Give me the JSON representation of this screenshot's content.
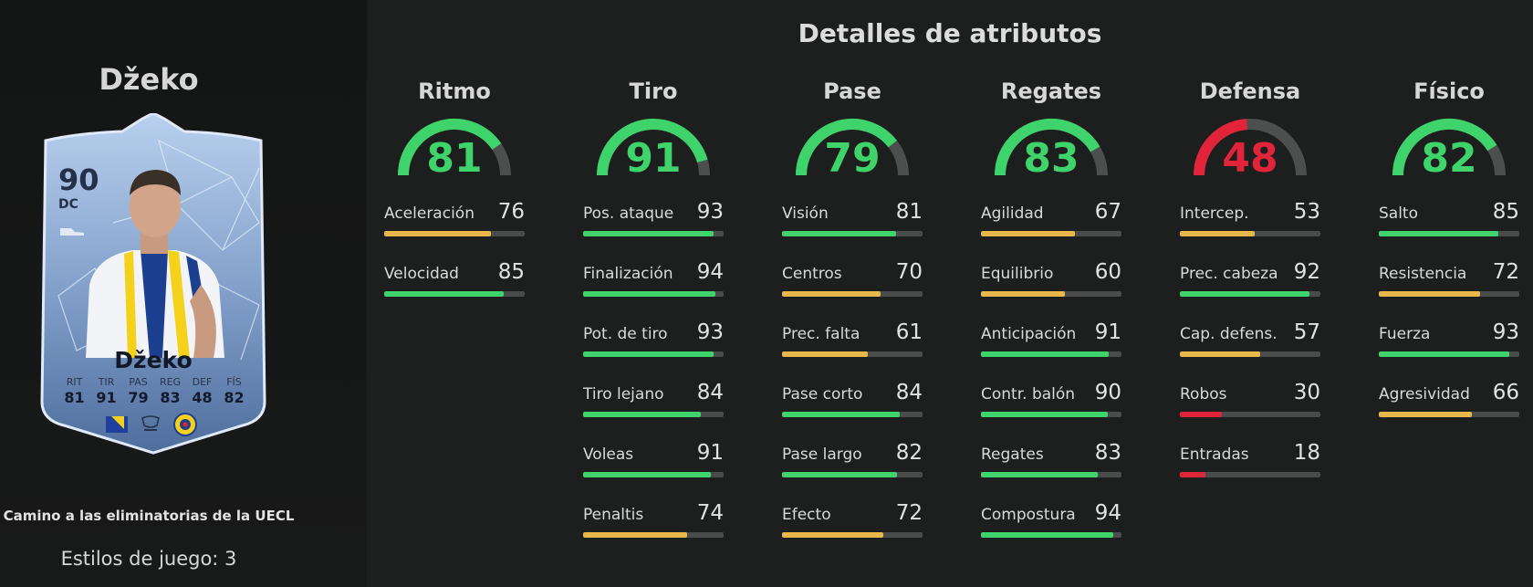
{
  "player": {
    "name": "Džeko",
    "rating": "90",
    "position": "DC",
    "promo": "Camino a las eliminatorias de la UECL",
    "playstyles_label": "Estilos de juego: 3",
    "card_stats": [
      {
        "label": "RIT",
        "value": "81"
      },
      {
        "label": "TIR",
        "value": "91"
      },
      {
        "label": "PAS",
        "value": "79"
      },
      {
        "label": "REG",
        "value": "83"
      },
      {
        "label": "DEF",
        "value": "48"
      },
      {
        "label": "FÍS",
        "value": "82"
      }
    ]
  },
  "page_title": "Detalles de atributos",
  "colors": {
    "high": "#3fd36b",
    "medium": "#e8b94a",
    "low": "#e2243a",
    "track": "#4a4c4c",
    "card": "#a9c4e6"
  },
  "categories": [
    {
      "title": "Ritmo",
      "value": 81,
      "attributes": [
        {
          "name": "Aceleración",
          "value": 76
        },
        {
          "name": "Velocidad",
          "value": 85
        }
      ]
    },
    {
      "title": "Tiro",
      "value": 91,
      "attributes": [
        {
          "name": "Pos. ataque",
          "value": 93
        },
        {
          "name": "Finalización",
          "value": 94
        },
        {
          "name": "Pot. de tiro",
          "value": 93
        },
        {
          "name": "Tiro lejano",
          "value": 84
        },
        {
          "name": "Voleas",
          "value": 91
        },
        {
          "name": "Penaltis",
          "value": 74
        }
      ]
    },
    {
      "title": "Pase",
      "value": 79,
      "attributes": [
        {
          "name": "Visión",
          "value": 81
        },
        {
          "name": "Centros",
          "value": 70
        },
        {
          "name": "Prec. falta",
          "value": 61
        },
        {
          "name": "Pase corto",
          "value": 84
        },
        {
          "name": "Pase largo",
          "value": 82
        },
        {
          "name": "Efecto",
          "value": 72
        }
      ]
    },
    {
      "title": "Regates",
      "value": 83,
      "attributes": [
        {
          "name": "Agilidad",
          "value": 67
        },
        {
          "name": "Equilibrio",
          "value": 60
        },
        {
          "name": "Anticipación",
          "value": 91
        },
        {
          "name": "Contr. balón",
          "value": 90
        },
        {
          "name": "Regates",
          "value": 83
        },
        {
          "name": "Compostura",
          "value": 94
        }
      ]
    },
    {
      "title": "Defensa",
      "value": 48,
      "attributes": [
        {
          "name": "Intercep.",
          "value": 53
        },
        {
          "name": "Prec. cabeza",
          "value": 92
        },
        {
          "name": "Cap. defens.",
          "value": 57
        },
        {
          "name": "Robos",
          "value": 30
        },
        {
          "name": "Entradas",
          "value": 18
        }
      ]
    },
    {
      "title": "Físico",
      "value": 82,
      "attributes": [
        {
          "name": "Salto",
          "value": 85
        },
        {
          "name": "Resistencia",
          "value": 72
        },
        {
          "name": "Fuerza",
          "value": 93
        },
        {
          "name": "Agresividad",
          "value": 66
        }
      ]
    }
  ]
}
